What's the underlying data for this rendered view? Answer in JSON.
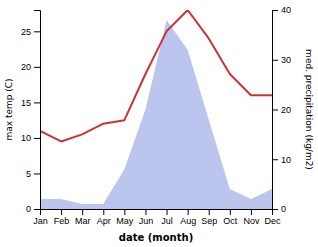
{
  "chart_data": {
    "type": "line",
    "xlabel": "date (month)",
    "ylabel": "max temp (C)",
    "y2label": "med. precipitation (kg/m2)",
    "categories": [
      "Jan",
      "Feb",
      "Mar",
      "Apr",
      "May",
      "Jun",
      "Jul",
      "Aug",
      "Sep",
      "Oct",
      "Nov",
      "Dec"
    ],
    "series": [
      {
        "type": "area",
        "axis": "y2",
        "color": "#bcc5ee",
        "values": [
          2,
          2,
          1,
          1,
          8,
          20,
          38,
          32,
          18,
          4,
          2,
          4
        ]
      },
      {
        "type": "line",
        "color": "#cc3333",
        "values": [
          11,
          9.5,
          10.5,
          12,
          12.5,
          19,
          25,
          28,
          24,
          19,
          16,
          16
        ]
      }
    ],
    "ylim": [
      0,
      28
    ],
    "yticks": [
      0,
      5,
      10,
      15,
      20,
      25
    ],
    "y2lim": [
      0,
      40
    ],
    "y2ticks": [
      0,
      10,
      20,
      30,
      40
    ],
    "grid": false
  }
}
